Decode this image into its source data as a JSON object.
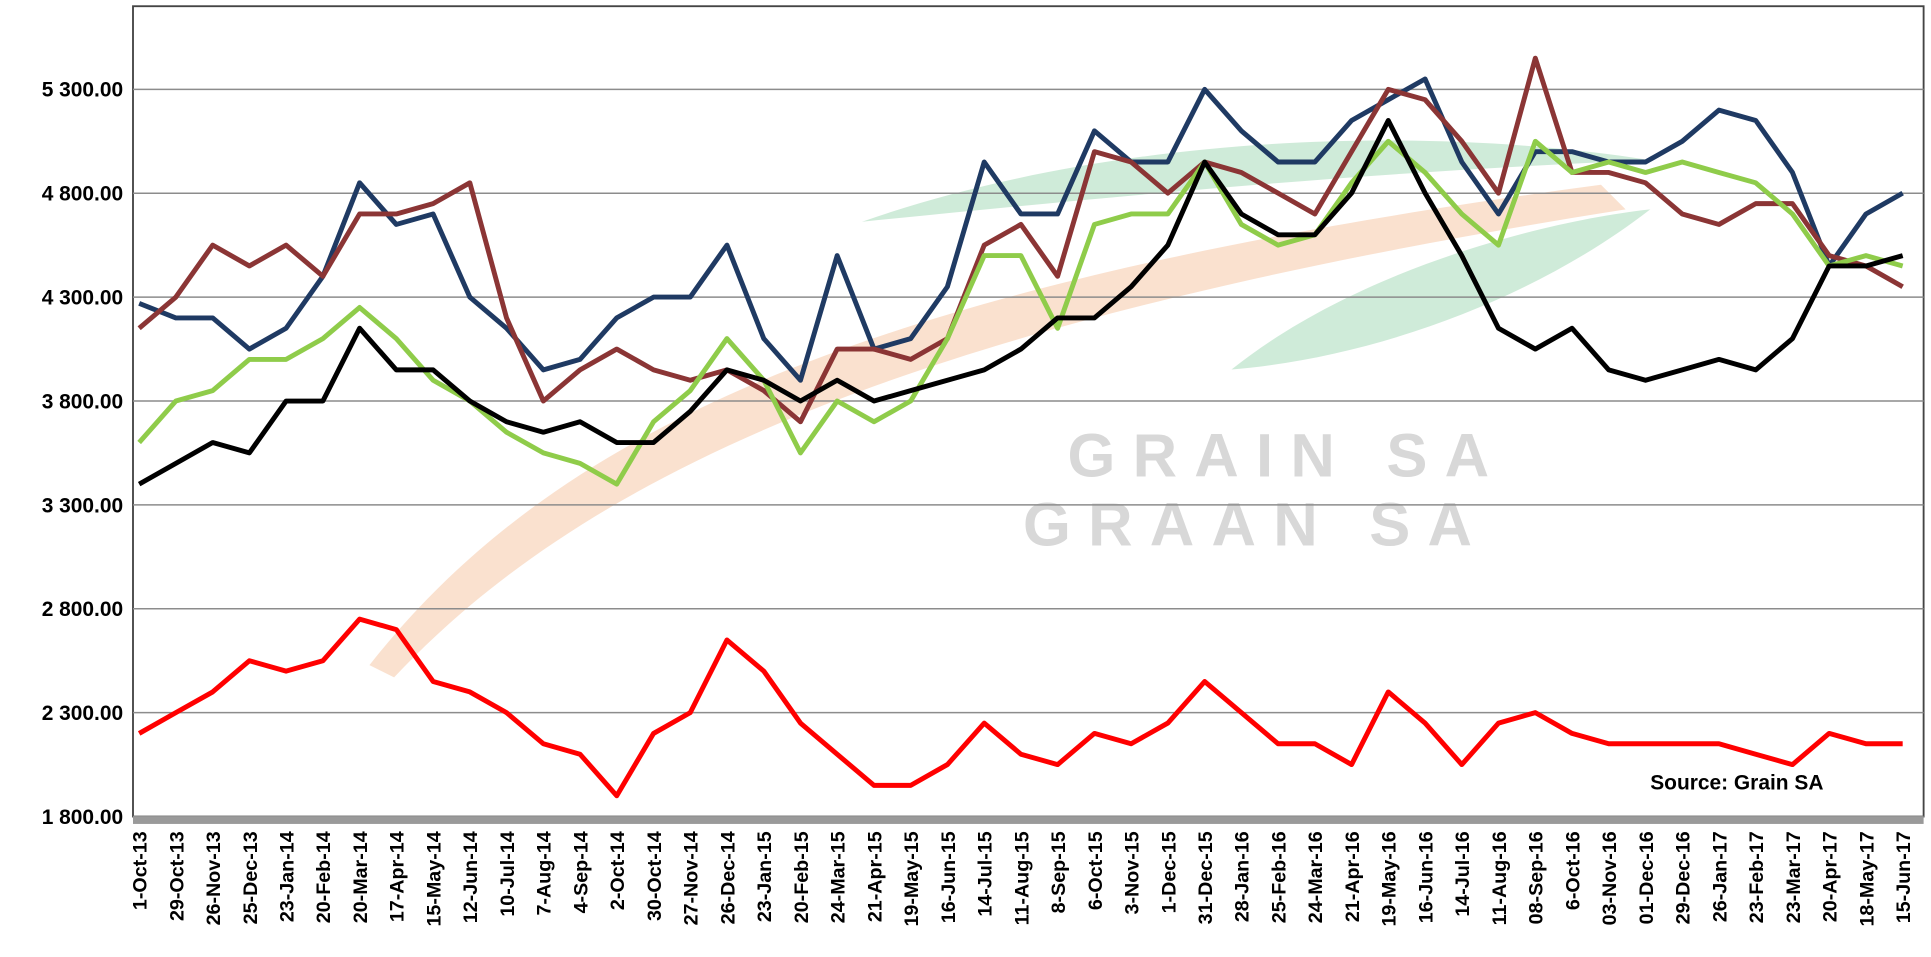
{
  "chart_data": {
    "type": "line",
    "categories": [
      "1-Oct-13",
      "29-Oct-13",
      "26-Nov-13",
      "25-Dec-13",
      "23-Jan-14",
      "20-Feb-14",
      "20-Mar-14",
      "17-Apr-14",
      "15-May-14",
      "12-Jun-14",
      "10-Jul-14",
      "7-Aug-14",
      "4-Sep-14",
      "2-Oct-14",
      "30-Oct-14",
      "27-Nov-14",
      "26-Dec-14",
      "23-Jan-15",
      "20-Feb-15",
      "24-Mar-15",
      "21-Apr-15",
      "19-May-15",
      "16-Jun-15",
      "14-Jul-15",
      "11-Aug-15",
      "8-Sep-15",
      "6-Oct-15",
      "3-Nov-15",
      "1-Dec-15",
      "31-Dec-15",
      "28-Jan-16",
      "25-Feb-16",
      "24-Mar-16",
      "21-Apr-16",
      "19-May-16",
      "16-Jun-16",
      "14-Jul-16",
      "11-Aug-16",
      "08-Sep-16",
      "6-Oct-16",
      "03-Nov-16",
      "01-Dec-16",
      "29-Dec-16",
      "26-Jan-17",
      "23-Feb-17",
      "23-Mar-17",
      "20-Apr-17",
      "18-May-17",
      "15-Jun-17"
    ],
    "series": [
      {
        "color": "#1f3a63",
        "values": [
          4270,
          4200,
          4200,
          4050,
          4150,
          4400,
          4850,
          4650,
          4700,
          4300,
          4150,
          3950,
          4000,
          4200,
          4300,
          4300,
          4550,
          4100,
          3900,
          4500,
          4050,
          4100,
          4350,
          4950,
          4700,
          4700,
          5100,
          4950,
          4950,
          5300,
          5100,
          4950,
          4950,
          5150,
          5250,
          5350,
          4950,
          4700,
          5000,
          5000,
          4950,
          4950,
          5050,
          5200,
          5150,
          4900,
          4450,
          4700,
          4800
        ]
      },
      {
        "color": "#8b3535",
        "values": [
          4150,
          4300,
          4550,
          4450,
          4550,
          4400,
          4700,
          4700,
          4750,
          4850,
          4200,
          3800,
          3950,
          4050,
          3950,
          3900,
          3950,
          3850,
          3700,
          4050,
          4050,
          4000,
          4100,
          4550,
          4650,
          4400,
          5000,
          4950,
          4800,
          4950,
          4900,
          4800,
          4700,
          5000,
          5300,
          5250,
          5050,
          4800,
          5450,
          4900,
          4900,
          4850,
          4700,
          4650,
          4750,
          4750,
          4500,
          4450,
          4350
        ]
      },
      {
        "color": "#8fcc4a",
        "values": [
          3600,
          3800,
          3850,
          4000,
          4000,
          4100,
          4250,
          4100,
          3900,
          3800,
          3650,
          3550,
          3500,
          3400,
          3700,
          3850,
          4100,
          3900,
          3550,
          3800,
          3700,
          3800,
          4100,
          4500,
          4500,
          4150,
          4650,
          4700,
          4700,
          4950,
          4650,
          4550,
          4600,
          4850,
          5050,
          4900,
          4700,
          4550,
          5050,
          4900,
          4950,
          4900,
          4950,
          4900,
          4850,
          4700,
          4450,
          4500,
          4450
        ]
      },
      {
        "color": "#000000",
        "values": [
          3400,
          3500,
          3600,
          3550,
          3800,
          3800,
          4150,
          3950,
          3950,
          3800,
          3700,
          3650,
          3700,
          3600,
          3600,
          3750,
          3950,
          3900,
          3800,
          3900,
          3800,
          3850,
          3900,
          3950,
          4050,
          4200,
          4200,
          4350,
          4550,
          4950,
          4700,
          4600,
          4600,
          4800,
          5150,
          4800,
          4500,
          4150,
          4050,
          4150,
          3950,
          3900,
          3950,
          4000,
          3950,
          4100,
          4450,
          4450,
          4500
        ]
      },
      {
        "color": "#ff0000",
        "values": [
          2200,
          2300,
          2400,
          2550,
          2500,
          2550,
          2750,
          2700,
          2450,
          2400,
          2300,
          2150,
          2100,
          1900,
          2200,
          2300,
          2650,
          2500,
          2250,
          2100,
          1950,
          1950,
          2050,
          2250,
          2100,
          2050,
          2200,
          2150,
          2250,
          2450,
          2300,
          2150,
          2150,
          2050,
          2400,
          2250,
          2050,
          2250,
          2300,
          2200,
          2150,
          2150,
          2150,
          2150,
          2100,
          2050,
          2200,
          2150,
          2150
        ]
      }
    ],
    "ylim": [
      1800,
      5700
    ],
    "yticks": [
      {
        "value": 1800,
        "label": "1 800.00"
      },
      {
        "value": 2300,
        "label": "2 300.00"
      },
      {
        "value": 2800,
        "label": "2 800.00"
      },
      {
        "value": 3300,
        "label": "3 300.00"
      },
      {
        "value": 3800,
        "label": "3 800.00"
      },
      {
        "value": 4300,
        "label": "4 300.00"
      },
      {
        "value": 4800,
        "label": "4 800.00"
      },
      {
        "value": 5300,
        "label": "5 300.00"
      }
    ],
    "grid": true,
    "annotation": "Source: Grain SA",
    "watermark": [
      "GRAIN SA",
      "GRAAN SA"
    ]
  }
}
